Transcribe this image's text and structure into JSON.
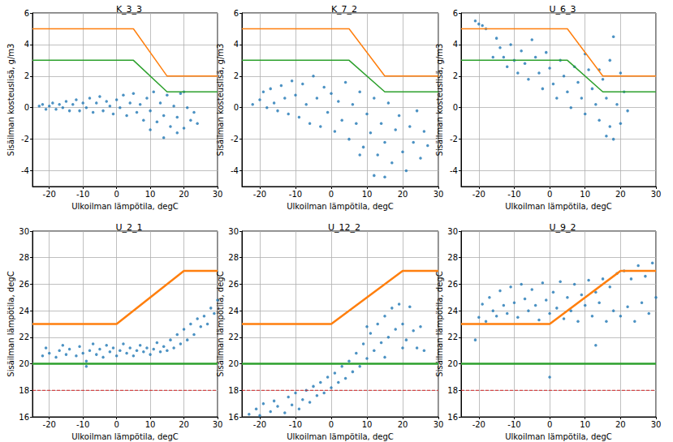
{
  "chart_data": [
    {
      "type": "scatter",
      "title": "K_3_3",
      "xlabel": "Ulkoilman lämpötila, degC",
      "ylabel": "Sisäilman kosteuslisä, g/m3",
      "xlim": [
        -25,
        30
      ],
      "xticks": [
        -20,
        -10,
        0,
        10,
        20,
        30
      ],
      "ylim": [
        -5,
        6
      ],
      "yticks": [
        -4,
        -2,
        0,
        2,
        4,
        6
      ],
      "grid": true,
      "series": [
        {
          "type": "scatter",
          "color": "#1f77b4",
          "x": [
            -23,
            -22,
            -21,
            -20,
            -19,
            -18,
            -17,
            -16,
            -15,
            -14,
            -13,
            -12,
            -11,
            -10,
            -9,
            -8,
            -7,
            -6,
            -5,
            -4,
            -3,
            -2,
            -1,
            0,
            1,
            2,
            3,
            4,
            5,
            6,
            7,
            8,
            9,
            10,
            11,
            12,
            13,
            14,
            15,
            16,
            17,
            18,
            19,
            20,
            21,
            22,
            23,
            24,
            14,
            18,
            10,
            20
          ],
          "y": [
            0.1,
            0.2,
            -0.1,
            0.1,
            0.3,
            -0.1,
            0.2,
            0.0,
            0.4,
            -0.2,
            0.2,
            0.5,
            -0.2,
            0.3,
            0.0,
            0.6,
            -0.3,
            0.3,
            0.7,
            -0.2,
            0.4,
            0.1,
            -0.4,
            0.5,
            0.0,
            0.8,
            -0.5,
            0.3,
            0.9,
            -0.3,
            0.2,
            -0.8,
            0.6,
            -0.2,
            1.0,
            -0.9,
            0.3,
            -0.5,
            0.8,
            -1.2,
            0.1,
            -0.6,
            0.9,
            -1.3,
            0.0,
            -0.8,
            -0.3,
            -1.0,
            -1.9,
            -1.6,
            -1.4,
            1.0
          ]
        },
        {
          "type": "line",
          "color": "#ff7f0e",
          "x": [
            -25,
            5,
            15,
            30
          ],
          "y": [
            5,
            5,
            2,
            2
          ]
        },
        {
          "type": "line",
          "color": "#2ca02c",
          "x": [
            -25,
            5,
            15,
            30
          ],
          "y": [
            3,
            3,
            1,
            1
          ]
        }
      ]
    },
    {
      "type": "scatter",
      "title": "K_7_2",
      "xlabel": "Ulkoilman lämpötila, degC",
      "ylabel": "Sisäilman kosteuslisä, g/m3",
      "xlim": [
        -25,
        30
      ],
      "xticks": [
        -20,
        -10,
        0,
        10,
        20,
        30
      ],
      "ylim": [
        -5,
        6
      ],
      "yticks": [
        -4,
        -2,
        0,
        2,
        4,
        6
      ],
      "grid": true,
      "series": [
        {
          "type": "scatter",
          "color": "#1f77b4",
          "x": [
            -20,
            -19,
            -18,
            -17,
            -16,
            -15,
            -14,
            -13,
            -12,
            -11,
            -10,
            -9,
            -8,
            -7,
            -6,
            -5,
            -4,
            -3,
            -2,
            -1,
            0,
            1,
            2,
            3,
            4,
            5,
            6,
            7,
            8,
            9,
            10,
            11,
            12,
            13,
            14,
            15,
            16,
            17,
            18,
            19,
            20,
            21,
            22,
            23,
            24,
            25,
            26,
            27,
            12,
            8,
            15,
            -22
          ],
          "y": [
            0.5,
            1.0,
            0.0,
            1.2,
            0.3,
            -0.2,
            1.4,
            0.6,
            -0.4,
            1.7,
            0.8,
            -0.6,
            1.5,
            0.2,
            -1.0,
            2.0,
            0.6,
            -1.2,
            1.3,
            -0.3,
            0.9,
            -1.5,
            0.4,
            -0.8,
            1.6,
            -2.0,
            0.2,
            -1.0,
            1.0,
            -2.5,
            -0.4,
            -1.6,
            0.6,
            -3.0,
            -1.0,
            -2.2,
            0.3,
            -3.5,
            -1.4,
            -0.5,
            -2.8,
            -4.0,
            -1.2,
            -2.2,
            -0.2,
            -3.2,
            -1.5,
            -2.4,
            -4.3,
            -3.0,
            -4.4,
            0.2
          ]
        },
        {
          "type": "line",
          "color": "#ff7f0e",
          "x": [
            -25,
            5,
            15,
            30
          ],
          "y": [
            5,
            5,
            2,
            2
          ]
        },
        {
          "type": "line",
          "color": "#2ca02c",
          "x": [
            -25,
            5,
            15,
            30
          ],
          "y": [
            3,
            3,
            1,
            1
          ]
        }
      ]
    },
    {
      "type": "scatter",
      "title": "U_6_3",
      "xlabel": "Ulkoilman lämpötila, degC",
      "ylabel": "Sisäilman kosteuslisä, g/m3",
      "xlim": [
        -25,
        30
      ],
      "xticks": [
        -20,
        -10,
        0,
        10,
        20,
        30
      ],
      "ylim": [
        -5,
        6
      ],
      "yticks": [
        -4,
        -2,
        0,
        2,
        4,
        6
      ],
      "grid": true,
      "series": [
        {
          "type": "scatter",
          "color": "#1f77b4",
          "x": [
            -21,
            -20,
            -19,
            -18,
            -14,
            -13,
            -12,
            -11,
            -10,
            -9,
            -8,
            -7,
            -6,
            -5,
            -4,
            -3,
            -2,
            -1,
            0,
            1,
            2,
            3,
            4,
            5,
            6,
            7,
            8,
            9,
            10,
            11,
            12,
            13,
            14,
            15,
            16,
            17,
            18,
            19,
            20,
            21,
            22,
            18,
            17,
            -16,
            -15,
            10,
            14,
            20,
            16
          ],
          "y": [
            5.5,
            5.3,
            5.2,
            5.0,
            3.8,
            3.2,
            2.6,
            4.0,
            3.0,
            2.2,
            3.6,
            2.8,
            1.8,
            4.3,
            3.2,
            2.2,
            1.2,
            3.5,
            2.5,
            1.5,
            0.6,
            3.0,
            2.0,
            1.0,
            0.0,
            2.6,
            1.6,
            0.6,
            -0.4,
            2.4,
            1.2,
            0.2,
            -0.8,
            1.8,
            0.6,
            -1.2,
            -2.0,
            0.2,
            -1.0,
            1.0,
            -0.2,
            4.5,
            3.0,
            3.2,
            4.4,
            3.4,
            2.4,
            2.2,
            -1.8
          ]
        },
        {
          "type": "line",
          "color": "#ff7f0e",
          "x": [
            -25,
            5,
            15,
            30
          ],
          "y": [
            5,
            5,
            2,
            2
          ]
        },
        {
          "type": "line",
          "color": "#2ca02c",
          "x": [
            -25,
            5,
            15,
            30
          ],
          "y": [
            3,
            3,
            1,
            1
          ]
        }
      ]
    },
    {
      "type": "scatter",
      "title": "U_2_1",
      "xlabel": "Ulkoilman lämpötila, degC",
      "ylabel": "Sisäilman lämpötila, degC",
      "xlim": [
        -25,
        30
      ],
      "xticks": [
        -20,
        -10,
        0,
        10,
        20,
        30
      ],
      "ylim": [
        16,
        30
      ],
      "yticks": [
        16,
        18,
        20,
        22,
        24,
        26,
        28,
        30
      ],
      "grid": true,
      "series": [
        {
          "type": "scatter",
          "color": "#1f77b4",
          "x": [
            -22,
            -21,
            -20,
            -18,
            -17,
            -16,
            -15,
            -14,
            -12,
            -11,
            -10,
            -9,
            -8,
            -7,
            -6,
            -5,
            -4,
            -3,
            -2,
            -1,
            0,
            1,
            2,
            3,
            4,
            5,
            6,
            7,
            8,
            9,
            10,
            11,
            12,
            13,
            14,
            15,
            16,
            17,
            18,
            19,
            20,
            21,
            22,
            23,
            24,
            25,
            26,
            27,
            28,
            29,
            30,
            -9
          ],
          "y": [
            20.6,
            21.2,
            20.8,
            20.5,
            21.0,
            21.4,
            20.7,
            21.1,
            20.6,
            21.3,
            20.8,
            20.2,
            21.0,
            21.5,
            20.7,
            21.1,
            20.5,
            21.4,
            20.9,
            21.2,
            20.6,
            21.0,
            21.5,
            20.8,
            21.2,
            20.6,
            21.0,
            21.4,
            20.9,
            21.2,
            20.7,
            21.1,
            21.6,
            20.9,
            21.3,
            21.0,
            21.8,
            21.2,
            22.2,
            21.5,
            22.6,
            21.8,
            23.0,
            22.2,
            23.4,
            22.8,
            23.6,
            23.0,
            24.2,
            23.8,
            24.8,
            19.8
          ]
        },
        {
          "type": "line",
          "color": "#ff7f0e",
          "x": [
            -25,
            0,
            20,
            30
          ],
          "y": [
            23,
            23,
            27,
            27
          ]
        },
        {
          "type": "line",
          "color": "#2ca02c",
          "x": [
            -25,
            30
          ],
          "y": [
            20,
            20
          ]
        },
        {
          "type": "line",
          "color": "#d62728",
          "line_style": "dashed",
          "x": [
            -25,
            30
          ],
          "y": [
            18,
            18
          ]
        }
      ]
    },
    {
      "type": "scatter",
      "title": "U_12_2",
      "xlabel": "Ulkoilman lämpötila, degC",
      "ylabel": "Sisäilman lämpötila, degC",
      "xlim": [
        -25,
        30
      ],
      "xticks": [
        -20,
        -10,
        0,
        10,
        20,
        30
      ],
      "ylim": [
        16,
        30
      ],
      "yticks": [
        16,
        18,
        20,
        22,
        24,
        26,
        28,
        30
      ],
      "grid": true,
      "series": [
        {
          "type": "scatter",
          "color": "#1f77b4",
          "x": [
            -23,
            -21,
            -20,
            -19,
            -17,
            -16,
            -15,
            -13,
            -12,
            -11,
            -10,
            -9,
            -8,
            -7,
            -6,
            -5,
            -4,
            -3,
            -2,
            -1,
            0,
            1,
            2,
            3,
            4,
            5,
            6,
            7,
            8,
            9,
            10,
            11,
            12,
            13,
            14,
            15,
            16,
            17,
            18,
            19,
            20,
            21,
            22,
            23,
            24,
            25,
            26,
            10,
            15,
            20
          ],
          "y": [
            16.2,
            16.6,
            16.1,
            17.0,
            16.4,
            17.2,
            16.8,
            16.3,
            17.5,
            16.9,
            17.8,
            16.6,
            17.3,
            18.0,
            17.1,
            18.3,
            17.6,
            18.6,
            17.8,
            19.0,
            18.2,
            19.3,
            18.6,
            19.8,
            18.9,
            20.2,
            19.4,
            20.8,
            19.8,
            21.5,
            20.4,
            22.3,
            21.0,
            23.0,
            21.6,
            23.6,
            22.0,
            24.2,
            22.6,
            24.5,
            23.0,
            21.8,
            24.3,
            22.5,
            21.2,
            22.8,
            21.0,
            22.8,
            20.5,
            21.2
          ]
        },
        {
          "type": "line",
          "color": "#ff7f0e",
          "x": [
            -25,
            0,
            20,
            30
          ],
          "y": [
            23,
            23,
            27,
            27
          ]
        },
        {
          "type": "line",
          "color": "#2ca02c",
          "x": [
            -25,
            30
          ],
          "y": [
            20,
            20
          ]
        },
        {
          "type": "line",
          "color": "#d62728",
          "line_style": "dashed",
          "x": [
            -25,
            30
          ],
          "y": [
            18,
            18
          ]
        }
      ]
    },
    {
      "type": "scatter",
      "title": "U_9_2",
      "xlabel": "Ulkoilman lämpötila, degC",
      "ylabel": "Sisäilman lämpötila, degC",
      "xlim": [
        -25,
        30
      ],
      "xticks": [
        -20,
        -10,
        0,
        10,
        20,
        30
      ],
      "ylim": [
        16,
        30
      ],
      "yticks": [
        16,
        18,
        20,
        22,
        24,
        26,
        28,
        30
      ],
      "grid": true,
      "series": [
        {
          "type": "scatter",
          "color": "#1f77b4",
          "x": [
            -21,
            -20,
            -19,
            -18,
            -17,
            -16,
            -15,
            -14,
            -13,
            -12,
            -11,
            -10,
            -9,
            -8,
            -7,
            -6,
            -5,
            -4,
            -3,
            -2,
            -1,
            0,
            1,
            2,
            3,
            4,
            5,
            6,
            7,
            8,
            9,
            10,
            11,
            12,
            13,
            14,
            15,
            16,
            17,
            18,
            19,
            20,
            21,
            22,
            23,
            24,
            25,
            26,
            27,
            28,
            29,
            30,
            0,
            13
          ],
          "y": [
            21.8,
            23.5,
            24.5,
            23.2,
            25.0,
            24.0,
            23.6,
            25.5,
            24.4,
            23.8,
            25.8,
            24.6,
            23.5,
            26.0,
            24.9,
            24.0,
            25.6,
            24.4,
            23.3,
            26.1,
            24.8,
            23.8,
            25.4,
            24.2,
            26.2,
            23.4,
            25.0,
            24.0,
            26.0,
            23.2,
            25.2,
            24.4,
            26.3,
            23.6,
            25.4,
            24.6,
            26.4,
            23.2,
            25.8,
            24.0,
            26.8,
            23.6,
            27.0,
            24.3,
            26.4,
            23.2,
            27.4,
            24.6,
            26.6,
            23.8,
            27.6,
            25.0,
            19.0,
            21.4
          ]
        },
        {
          "type": "line",
          "color": "#ff7f0e",
          "x": [
            -25,
            0,
            20,
            30
          ],
          "y": [
            23,
            23,
            27,
            27
          ]
        },
        {
          "type": "line",
          "color": "#2ca02c",
          "x": [
            -25,
            30
          ],
          "y": [
            20,
            20
          ]
        },
        {
          "type": "line",
          "color": "#d62728",
          "line_style": "dashed",
          "x": [
            -25,
            30
          ],
          "y": [
            18,
            18
          ]
        }
      ]
    }
  ]
}
